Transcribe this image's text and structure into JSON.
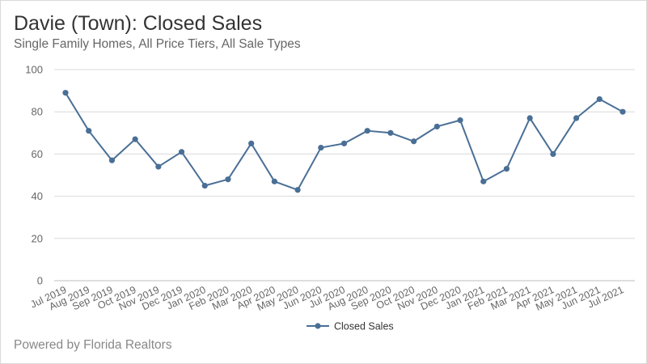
{
  "header": {
    "title": "Davie (Town): Closed Sales",
    "subtitle": "Single Family Homes, All Price Tiers, All Sale Types"
  },
  "footer": {
    "credit": "Powered by Florida Realtors"
  },
  "colors": {
    "series": "#4a6f96",
    "grid": "#d9d9d9",
    "axis": "#bfbfbf",
    "tick_text": "#666666"
  },
  "chart_data": {
    "type": "line",
    "title": "Davie (Town): Closed Sales",
    "subtitle": "Single Family Homes, All Price Tiers, All Sale Types",
    "xlabel": "",
    "ylabel": "",
    "ylim": [
      0,
      100
    ],
    "yticks": [
      0,
      20,
      40,
      60,
      80,
      100
    ],
    "grid": true,
    "legend_position": "bottom-center",
    "categories": [
      "Jul 2019",
      "Aug 2019",
      "Sep 2019",
      "Oct 2019",
      "Nov 2019",
      "Dec 2019",
      "Jan 2020",
      "Feb 2020",
      "Mar 2020",
      "Apr 2020",
      "May 2020",
      "Jun 2020",
      "Jul 2020",
      "Aug 2020",
      "Sep 2020",
      "Oct 2020",
      "Nov 2020",
      "Dec 2020",
      "Jan 2021",
      "Feb 2021",
      "Mar 2021",
      "Apr 2021",
      "May 2021",
      "Jun 2021",
      "Jul 2021"
    ],
    "series": [
      {
        "name": "Closed Sales",
        "values": [
          89,
          71,
          57,
          67,
          54,
          61,
          45,
          48,
          65,
          47,
          43,
          63,
          65,
          71,
          70,
          66,
          73,
          76,
          47,
          53,
          77,
          60,
          77,
          86,
          80
        ]
      }
    ]
  }
}
